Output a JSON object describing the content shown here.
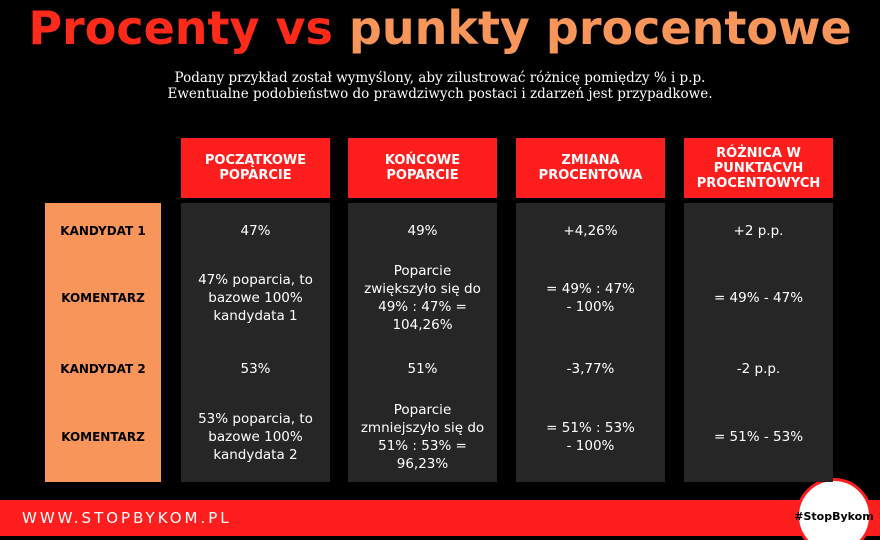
{
  "header": {
    "title_part1": "Procenty vs",
    "title_part2": "punkty procentowe",
    "subtitle_line1": "Podany przykład został wymyślony, aby zilustrować różnicę pomiędzy % i p.p.",
    "subtitle_line2": "Ewentualne podobieństwo do prawdziwych postaci i zdarzeń jest przypadkowe."
  },
  "table": {
    "columns": [
      "POCZĄTKOWE POPARCIE",
      "KOŃCOWE POPARCIE",
      "ZMIANA PROCENTOWA",
      "RÓŻNICA W PUNKTACVH PROCENTOWYCH"
    ],
    "row_labels": [
      "KANDYDAT 1",
      "KOMENTARZ",
      "KANDYDAT 2",
      "KOMENTARZ"
    ],
    "rows": [
      [
        "47%",
        "49%",
        "+4,26%",
        "+2 p.p."
      ],
      [
        "47% poparcia, to bazowe 100% kandydata 1",
        "Poparcie zwiększyło się do 49% : 47% = 104,26%",
        "= 49% : 47% - 100%",
        "= 49% - 47%"
      ],
      [
        "53%",
        "51%",
        "-3,77%",
        "-2 p.p."
      ],
      [
        "53% poparcia, to bazowe 100% kandydata 2",
        "Poparcie zmniejszyło się do 51% : 53% = 96,23%",
        "= 51% : 53% - 100%",
        "= 51% - 53%"
      ]
    ]
  },
  "footer": {
    "url": "WWW.STOPBYKOM.PL",
    "badge": "#StopBykom"
  }
}
